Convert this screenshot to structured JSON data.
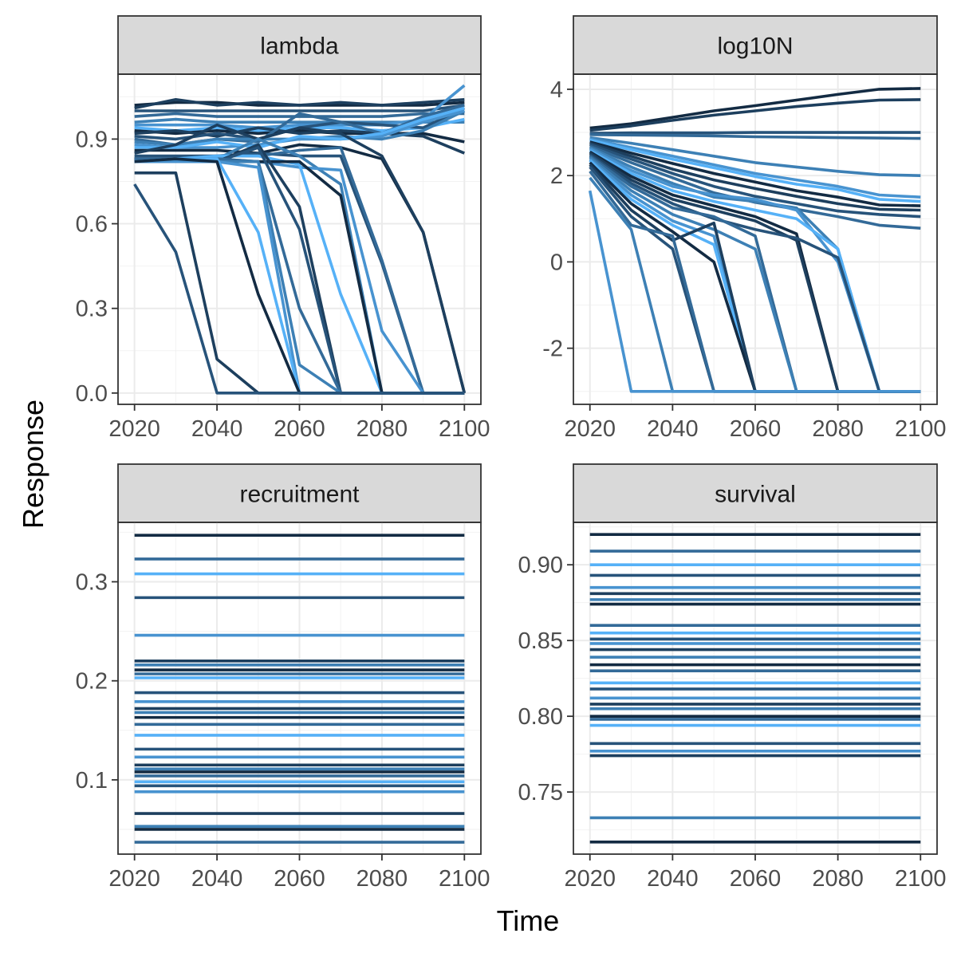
{
  "figure": {
    "xlabel": "Time",
    "ylabel": "Response"
  },
  "colors": [
    "#132b43",
    "#1d3f5e",
    "#27537a",
    "#336a98",
    "#3d80b5",
    "#4893d0",
    "#56b1f7"
  ],
  "chart_data": [
    {
      "type": "line",
      "facet": "lambda",
      "x": [
        2020,
        2030,
        2040,
        2050,
        2060,
        2070,
        2080,
        2090,
        2100
      ],
      "xticks": [
        2020,
        2040,
        2060,
        2080,
        2100
      ],
      "yticks": [
        0.0,
        0.3,
        0.6,
        0.9
      ],
      "ytick_labels": [
        "0.0",
        "0.3",
        "0.6",
        "0.9"
      ],
      "ylim": [
        -0.04,
        1.13
      ],
      "xlim": [
        2016,
        2104
      ],
      "series": [
        {
          "values": [
            1.02,
            1.03,
            1.03,
            1.02,
            1.02,
            1.02,
            1.02,
            1.02,
            1.03
          ]
        },
        {
          "values": [
            1.01,
            1.04,
            1.02,
            1.03,
            1.02,
            1.03,
            1.02,
            1.03,
            1.04
          ]
        },
        {
          "values": [
            1.0,
            1.0,
            1.0,
            1.0,
            1.0,
            1.0,
            1.0,
            1.0,
            1.02
          ]
        },
        {
          "values": [
            0.98,
            0.99,
            0.98,
            0.98,
            0.98,
            0.98,
            0.98,
            0.99,
            0.99
          ]
        },
        {
          "values": [
            0.96,
            0.97,
            0.96,
            0.96,
            0.96,
            0.96,
            0.96,
            0.96,
            0.96
          ]
        },
        {
          "values": [
            0.95,
            0.95,
            0.95,
            0.94,
            0.95,
            0.95,
            0.95,
            0.97,
            1.09
          ]
        },
        {
          "values": [
            0.94,
            0.93,
            0.94,
            0.93,
            0.94,
            0.94,
            0.93,
            0.94,
            0.97
          ]
        },
        {
          "values": [
            0.93,
            0.92,
            0.93,
            0.92,
            0.93,
            0.92,
            0.92,
            0.92,
            0.89
          ]
        },
        {
          "values": [
            0.92,
            0.93,
            0.91,
            0.94,
            0.92,
            0.93,
            0.92,
            0.91,
            0.85
          ]
        },
        {
          "values": [
            0.91,
            0.9,
            0.92,
            0.9,
            0.94,
            0.96,
            0.95,
            0.94,
            1.01
          ]
        },
        {
          "values": [
            0.9,
            0.88,
            0.9,
            0.89,
            0.99,
            0.96,
            0.92,
            0.98,
            1.02
          ]
        },
        {
          "values": [
            0.89,
            0.88,
            0.9,
            0.9,
            0.9,
            0.91,
            0.9,
            0.93,
            1.0
          ]
        },
        {
          "values": [
            0.88,
            0.87,
            0.87,
            0.88,
            0.9,
            0.9,
            0.91,
            0.96,
            1.0
          ]
        },
        {
          "values": [
            0.87,
            0.87,
            0.89,
            0.87,
            0.91,
            0.9,
            0.92,
            0.97,
            1.01
          ]
        },
        {
          "values": [
            0.86,
            0.86,
            0.86,
            0.85,
            0.88,
            0.87,
            0.83,
            0.57,
            0.0
          ]
        },
        {
          "values": [
            0.85,
            0.88,
            0.95,
            0.9,
            0.94,
            0.92,
            0.84,
            0.57,
            0.0
          ]
        },
        {
          "values": [
            0.84,
            0.84,
            0.84,
            0.85,
            0.84,
            0.84,
            0.46,
            0.0,
            0.0
          ]
        },
        {
          "values": [
            0.83,
            0.83,
            0.84,
            0.84,
            0.86,
            0.87,
            0.47,
            0.0,
            0.0
          ]
        },
        {
          "values": [
            0.82,
            0.82,
            0.83,
            0.9,
            0.84,
            0.74,
            0.0,
            0.0,
            0.0
          ]
        },
        {
          "values": [
            0.82,
            0.82,
            0.83,
            0.82,
            0.8,
            0.79,
            0.22,
            0.0,
            0.0
          ]
        },
        {
          "values": [
            0.82,
            0.83,
            0.84,
            0.84,
            0.81,
            0.35,
            0.0,
            0.0,
            0.0
          ]
        },
        {
          "values": [
            0.83,
            0.83,
            0.82,
            0.82,
            0.82,
            0.7,
            0.0,
            0.0,
            0.0
          ]
        },
        {
          "values": [
            0.83,
            0.82,
            0.82,
            0.88,
            0.66,
            0.0,
            0.0,
            0.0,
            0.0
          ]
        },
        {
          "values": [
            0.82,
            0.82,
            0.82,
            0.87,
            0.58,
            0.0,
            0.0,
            0.0,
            0.0
          ]
        },
        {
          "values": [
            0.83,
            0.83,
            0.83,
            0.82,
            0.3,
            0.0,
            0.0,
            0.0,
            0.0
          ]
        },
        {
          "values": [
            0.82,
            0.82,
            0.82,
            0.82,
            0.1,
            0.0,
            0.0,
            0.0,
            0.0
          ]
        },
        {
          "values": [
            0.82,
            0.82,
            0.82,
            0.8,
            0.0,
            0.0,
            0.0,
            0.0,
            0.0
          ]
        },
        {
          "values": [
            0.82,
            0.83,
            0.83,
            0.57,
            0.0,
            0.0,
            0.0,
            0.0,
            0.0
          ]
        },
        {
          "values": [
            0.82,
            0.83,
            0.82,
            0.35,
            0.0,
            0.0,
            0.0,
            0.0,
            0.0
          ]
        },
        {
          "values": [
            0.78,
            0.78,
            0.12,
            0.0,
            0.0,
            0.0,
            0.0,
            0.0,
            0.0
          ]
        },
        {
          "values": [
            0.74,
            0.5,
            0.0,
            0.0,
            0.0,
            0.0,
            0.0,
            0.0,
            0.0
          ]
        }
      ]
    },
    {
      "type": "line",
      "facet": "log10N",
      "x": [
        2020,
        2030,
        2040,
        2050,
        2060,
        2070,
        2080,
        2090,
        2100
      ],
      "xticks": [
        2020,
        2040,
        2060,
        2080,
        2100
      ],
      "yticks": [
        -2,
        0,
        2,
        4
      ],
      "ytick_labels": [
        "-2",
        "0",
        "2",
        "4"
      ],
      "ylim": [
        -3.3,
        4.35
      ],
      "xlim": [
        2016,
        2104
      ],
      "series": [
        {
          "values": [
            3.1,
            3.2,
            3.35,
            3.5,
            3.62,
            3.75,
            3.88,
            4.0,
            4.02
          ]
        },
        {
          "values": [
            3.05,
            3.15,
            3.28,
            3.4,
            3.5,
            3.6,
            3.68,
            3.75,
            3.76
          ]
        },
        {
          "values": [
            2.98,
            2.99,
            2.99,
            2.99,
            3.0,
            3.0,
            3.0,
            3.0,
            3.0
          ]
        },
        {
          "values": [
            2.95,
            2.94,
            2.93,
            2.92,
            2.9,
            2.89,
            2.88,
            2.87,
            2.86
          ]
        },
        {
          "values": [
            2.88,
            2.75,
            2.6,
            2.45,
            2.3,
            2.2,
            2.1,
            2.02,
            2.0
          ]
        },
        {
          "values": [
            2.85,
            2.65,
            2.45,
            2.25,
            2.05,
            1.9,
            1.75,
            1.55,
            1.5
          ]
        },
        {
          "values": [
            2.82,
            2.6,
            2.38,
            2.18,
            1.98,
            1.8,
            1.68,
            1.45,
            1.4
          ]
        },
        {
          "values": [
            2.78,
            2.52,
            2.28,
            2.05,
            1.85,
            1.65,
            1.5,
            1.32,
            1.3
          ]
        },
        {
          "values": [
            2.75,
            2.45,
            2.15,
            1.9,
            1.7,
            1.52,
            1.35,
            1.22,
            1.2
          ]
        },
        {
          "values": [
            2.72,
            2.38,
            2.05,
            1.75,
            1.52,
            1.35,
            1.18,
            1.1,
            1.05
          ]
        },
        {
          "values": [
            2.68,
            2.3,
            1.95,
            1.6,
            1.38,
            1.22,
            1.05,
            0.85,
            0.78
          ]
        },
        {
          "values": [
            2.65,
            2.2,
            1.82,
            1.5,
            1.4,
            1.25,
            0.3,
            -3.0,
            -3.0
          ]
        },
        {
          "values": [
            2.62,
            2.12,
            1.75,
            1.55,
            1.45,
            1.2,
            0.0,
            -3.0,
            -3.0
          ]
        },
        {
          "values": [
            2.58,
            2.05,
            1.65,
            1.4,
            1.2,
            1.0,
            0.3,
            -3.0,
            -3.0
          ]
        },
        {
          "values": [
            2.55,
            1.98,
            1.55,
            1.3,
            1.05,
            0.65,
            -3.0,
            -3.0,
            -3.0
          ]
        },
        {
          "values": [
            2.52,
            1.9,
            1.45,
            1.2,
            0.95,
            0.5,
            -3.0,
            -3.0,
            -3.0
          ]
        },
        {
          "values": [
            2.48,
            1.82,
            1.35,
            1.0,
            0.75,
            0.55,
            0.1,
            -3.0,
            -3.0
          ]
        },
        {
          "values": [
            2.45,
            1.75,
            1.25,
            1.05,
            0.6,
            -3.0,
            -3.0,
            -3.0,
            -3.0
          ]
        },
        {
          "values": [
            2.42,
            1.65,
            1.1,
            0.75,
            0.3,
            -3.0,
            -3.0,
            -3.0,
            -3.0
          ]
        },
        {
          "values": [
            2.38,
            1.55,
            0.95,
            0.6,
            -3.0,
            -3.0,
            -3.0,
            -3.0,
            -3.0
          ]
        },
        {
          "values": [
            2.35,
            1.45,
            0.85,
            0.4,
            -3.0,
            -3.0,
            -3.0,
            -3.0,
            -3.0
          ]
        },
        {
          "values": [
            2.3,
            1.35,
            0.7,
            0.0,
            -3.0,
            -3.0,
            -3.0,
            -3.0,
            -3.0
          ]
        },
        {
          "values": [
            2.25,
            1.2,
            0.5,
            0.9,
            -3.0,
            -3.0,
            -3.0,
            -3.0,
            -3.0
          ]
        },
        {
          "values": [
            2.2,
            1.05,
            0.3,
            -3.0,
            -3.0,
            -3.0,
            -3.0,
            -3.0,
            -3.0
          ]
        },
        {
          "values": [
            2.1,
            0.85,
            0.6,
            -3.0,
            -3.0,
            -3.0,
            -3.0,
            -3.0,
            -3.0
          ]
        },
        {
          "values": [
            1.95,
            0.75,
            -3.0,
            -3.0,
            -3.0,
            -3.0,
            -3.0,
            -3.0,
            -3.0
          ]
        },
        {
          "values": [
            1.65,
            -3.0,
            -3.0,
            -3.0,
            -3.0,
            -3.0,
            -3.0,
            -3.0,
            -3.0
          ]
        }
      ]
    },
    {
      "type": "line",
      "facet": "recruitment",
      "x": [
        2020,
        2100
      ],
      "xticks": [
        2020,
        2040,
        2060,
        2080,
        2100
      ],
      "yticks": [
        0.1,
        0.2,
        0.3
      ],
      "ytick_labels": [
        "0.1",
        "0.2",
        "0.3"
      ],
      "ylim": [
        0.025,
        0.36
      ],
      "xlim": [
        2016,
        2104
      ],
      "levels": [
        0.347,
        0.323,
        0.308,
        0.284,
        0.246,
        0.22,
        0.216,
        0.211,
        0.207,
        0.203,
        0.188,
        0.179,
        0.172,
        0.168,
        0.163,
        0.156,
        0.145,
        0.131,
        0.123,
        0.115,
        0.111,
        0.108,
        0.104,
        0.098,
        0.094,
        0.088,
        0.066,
        0.053,
        0.05,
        0.037
      ]
    },
    {
      "type": "line",
      "facet": "survival",
      "x": [
        2020,
        2100
      ],
      "xticks": [
        2020,
        2040,
        2060,
        2080,
        2100
      ],
      "yticks": [
        0.75,
        0.8,
        0.85,
        0.9
      ],
      "ytick_labels": [
        "0.75",
        "0.80",
        "0.85",
        "0.90"
      ],
      "ylim": [
        0.709,
        0.928
      ],
      "xlim": [
        2016,
        2104
      ],
      "levels": [
        0.92,
        0.909,
        0.9,
        0.893,
        0.885,
        0.881,
        0.877,
        0.874,
        0.86,
        0.855,
        0.851,
        0.848,
        0.844,
        0.839,
        0.834,
        0.83,
        0.822,
        0.818,
        0.812,
        0.808,
        0.805,
        0.8,
        0.798,
        0.794,
        0.782,
        0.777,
        0.774,
        0.733,
        0.717
      ]
    }
  ]
}
